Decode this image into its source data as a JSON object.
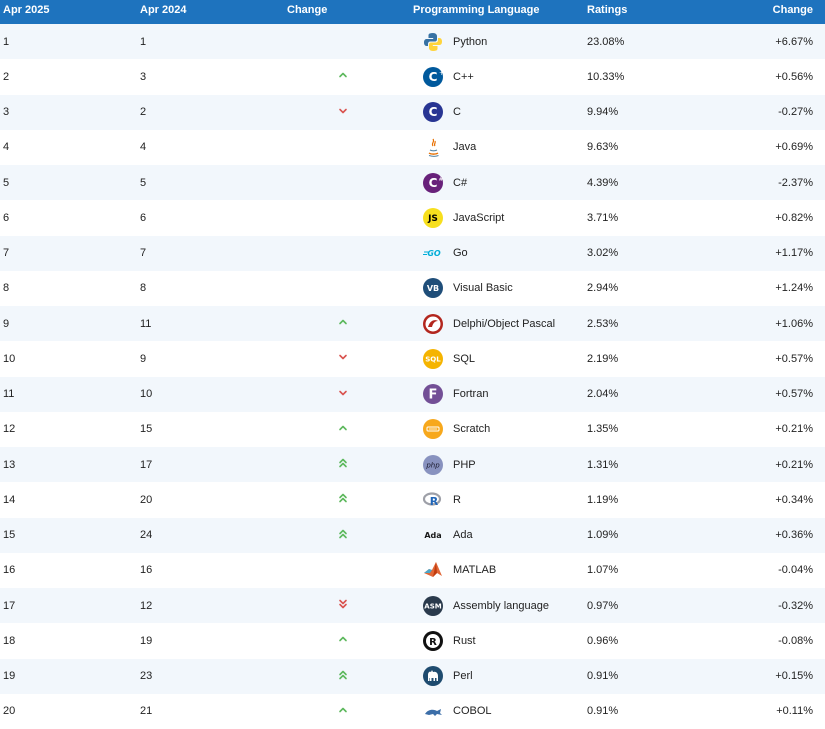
{
  "headers": {
    "rank_now": "Apr 2025",
    "rank_prev": "Apr 2024",
    "change": "Change",
    "language": "Programming Language",
    "ratings": "Ratings",
    "ratings_change": "Change"
  },
  "rows": [
    {
      "rank": "1",
      "prev": "1",
      "trend": "none",
      "icon": "python-icon",
      "language": "Python",
      "rating": "23.08%",
      "change": "+6.67%"
    },
    {
      "rank": "2",
      "prev": "3",
      "trend": "up",
      "icon": "cpp-icon",
      "language": "C++",
      "rating": "10.33%",
      "change": "+0.56%"
    },
    {
      "rank": "3",
      "prev": "2",
      "trend": "down",
      "icon": "c-icon",
      "language": "C",
      "rating": "9.94%",
      "change": "-0.27%"
    },
    {
      "rank": "4",
      "prev": "4",
      "trend": "none",
      "icon": "java-icon",
      "language": "Java",
      "rating": "9.63%",
      "change": "+0.69%"
    },
    {
      "rank": "5",
      "prev": "5",
      "trend": "none",
      "icon": "csharp-icon",
      "language": "C#",
      "rating": "4.39%",
      "change": "-2.37%"
    },
    {
      "rank": "6",
      "prev": "6",
      "trend": "none",
      "icon": "javascript-icon",
      "language": "JavaScript",
      "rating": "3.71%",
      "change": "+0.82%"
    },
    {
      "rank": "7",
      "prev": "7",
      "trend": "none",
      "icon": "go-icon",
      "language": "Go",
      "rating": "3.02%",
      "change": "+1.17%"
    },
    {
      "rank": "8",
      "prev": "8",
      "trend": "none",
      "icon": "visual-basic-icon",
      "language": "Visual Basic",
      "rating": "2.94%",
      "change": "+1.24%"
    },
    {
      "rank": "9",
      "prev": "11",
      "trend": "up",
      "icon": "delphi-icon",
      "language": "Delphi/Object Pascal",
      "rating": "2.53%",
      "change": "+1.06%"
    },
    {
      "rank": "10",
      "prev": "9",
      "trend": "down",
      "icon": "sql-icon",
      "language": "SQL",
      "rating": "2.19%",
      "change": "+0.57%"
    },
    {
      "rank": "11",
      "prev": "10",
      "trend": "down",
      "icon": "fortran-icon",
      "language": "Fortran",
      "rating": "2.04%",
      "change": "+0.57%"
    },
    {
      "rank": "12",
      "prev": "15",
      "trend": "up",
      "icon": "scratch-icon",
      "language": "Scratch",
      "rating": "1.35%",
      "change": "+0.21%"
    },
    {
      "rank": "13",
      "prev": "17",
      "trend": "double-up",
      "icon": "php-icon",
      "language": "PHP",
      "rating": "1.31%",
      "change": "+0.21%"
    },
    {
      "rank": "14",
      "prev": "20",
      "trend": "double-up",
      "icon": "r-icon",
      "language": "R",
      "rating": "1.19%",
      "change": "+0.34%"
    },
    {
      "rank": "15",
      "prev": "24",
      "trend": "double-up",
      "icon": "ada-icon",
      "language": "Ada",
      "rating": "1.09%",
      "change": "+0.36%"
    },
    {
      "rank": "16",
      "prev": "16",
      "trend": "none",
      "icon": "matlab-icon",
      "language": "MATLAB",
      "rating": "1.07%",
      "change": "-0.04%"
    },
    {
      "rank": "17",
      "prev": "12",
      "trend": "double-down",
      "icon": "assembly-icon",
      "language": "Assembly language",
      "rating": "0.97%",
      "change": "-0.32%"
    },
    {
      "rank": "18",
      "prev": "19",
      "trend": "up",
      "icon": "rust-icon",
      "language": "Rust",
      "rating": "0.96%",
      "change": "-0.08%"
    },
    {
      "rank": "19",
      "prev": "23",
      "trend": "double-up",
      "icon": "perl-icon",
      "language": "Perl",
      "rating": "0.91%",
      "change": "+0.15%"
    },
    {
      "rank": "20",
      "prev": "21",
      "trend": "up",
      "icon": "cobol-icon",
      "language": "COBOL",
      "rating": "0.91%",
      "change": "+0.11%"
    }
  ],
  "icon_labels": {
    "js": "JS",
    "go": "GO",
    "vb": "VB",
    "sql": "SQL",
    "f": "F",
    "php": "php",
    "r": "R",
    "ada": "Ada",
    "asm": "ASM",
    "rust": "R",
    "c": "C",
    "cpp": "C",
    "cs": "C"
  },
  "colors": {
    "header_bg": "#1e73be",
    "row_alt": "#f2f7fc",
    "up": "#5cb85c",
    "down": "#d9534f"
  }
}
